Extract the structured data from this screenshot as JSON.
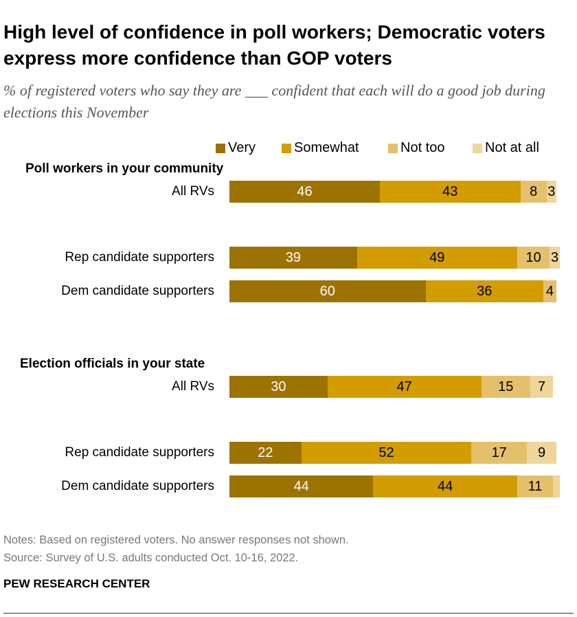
{
  "title": "High level of confidence in poll workers; Democratic voters express more confidence than GOP voters",
  "subtitle": "% of registered voters who say they are ___ confident that each will do a good job during elections this November",
  "notes": "Notes: Based on registered voters. No answer responses not shown.",
  "source": "Source: Survey of U.S. adults conducted Oct. 10-16, 2022.",
  "brand": "PEW RESEARCH CENTER",
  "chart_data": {
    "type": "bar",
    "orientation": "horizontal-stacked",
    "xlim": [
      0,
      100
    ],
    "legend_position": "top",
    "series": [
      {
        "name": "Very",
        "color": "#9c7200",
        "label_color": "#ffffff"
      },
      {
        "name": "Somewhat",
        "color": "#d39c00",
        "label_color": "#000000"
      },
      {
        "name": "Not too",
        "color": "#e5c06c",
        "label_color": "#000000"
      },
      {
        "name": "Not at all",
        "color": "#eed59c",
        "label_color": "#000000"
      }
    ],
    "groups": [
      {
        "title": "Poll workers in your community",
        "rows": [
          {
            "label": "All RVs",
            "values": [
              46,
              43,
              8,
              3
            ],
            "labels": [
              "46",
              "43",
              "8",
              "3"
            ]
          },
          {
            "label": "Rep candidate supporters",
            "values": [
              39,
              49,
              10,
              3
            ],
            "labels": [
              "39",
              "49",
              "10",
              "3"
            ]
          },
          {
            "label": "Dem candidate supporters",
            "values": [
              60,
              36,
              4,
              0
            ],
            "labels": [
              "60",
              "36",
              "4",
              ""
            ]
          }
        ]
      },
      {
        "title": "Election officials in your state",
        "rows": [
          {
            "label": "All RVs",
            "values": [
              30,
              47,
              15,
              7
            ],
            "labels": [
              "30",
              "47",
              "15",
              "7"
            ]
          },
          {
            "label": "Rep candidate supporters",
            "values": [
              22,
              52,
              17,
              9
            ],
            "labels": [
              "22",
              "52",
              "17",
              "9"
            ]
          },
          {
            "label": "Dem candidate supporters",
            "values": [
              44,
              44,
              11,
              2
            ],
            "labels": [
              "44",
              "44",
              "11",
              ""
            ]
          }
        ]
      }
    ]
  }
}
